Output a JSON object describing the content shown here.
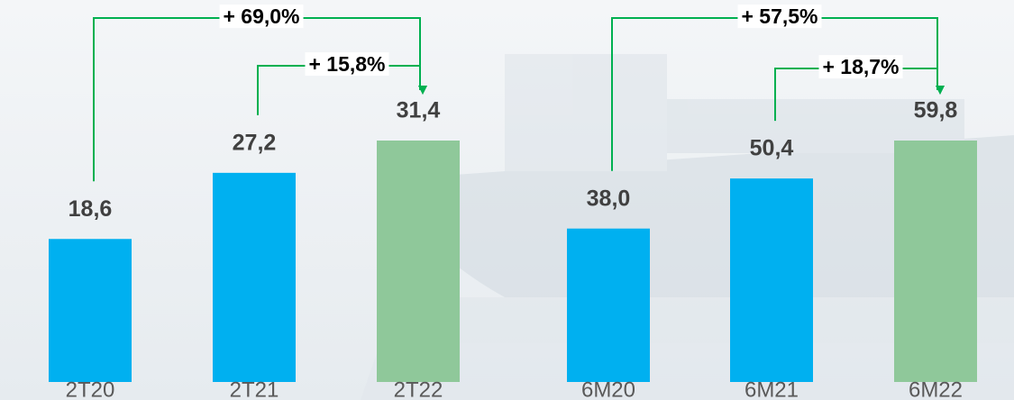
{
  "chart_data": [
    {
      "type": "bar",
      "categories": [
        "2T20",
        "2T21",
        "2T22"
      ],
      "values": [
        18.6,
        27.2,
        31.4
      ],
      "value_labels": [
        "18,6",
        "27,2",
        "31,4"
      ],
      "colors": [
        "#00b0f0",
        "#00b0f0",
        "#8fc89a"
      ],
      "annotations": [
        "+ 69,0%",
        "+ 15,8%"
      ]
    },
    {
      "type": "bar",
      "categories": [
        "6M20",
        "6M21",
        "6M22"
      ],
      "values": [
        38.0,
        50.4,
        59.8
      ],
      "value_labels": [
        "38,0",
        "50,4",
        "59,8"
      ],
      "colors": [
        "#00b0f0",
        "#00b0f0",
        "#8fc89a"
      ],
      "annotations": [
        "+ 57,5%",
        "+ 18,7%"
      ]
    }
  ]
}
